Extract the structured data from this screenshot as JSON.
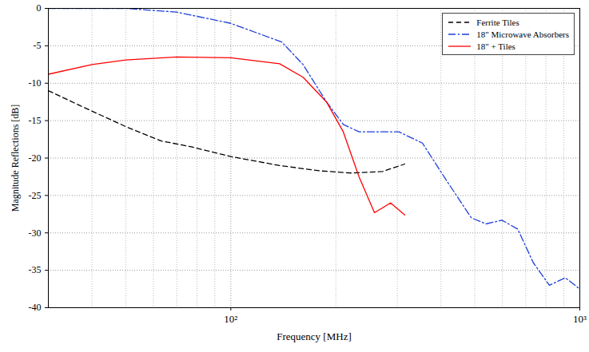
{
  "chart_data": {
    "type": "line",
    "x_label": "Frequency [MHz]",
    "y_label": "Magnitude Reflections [dB]",
    "log": "x",
    "grid": true,
    "legend": "upper right",
    "xlim": [
      30,
      1000
    ],
    "xticks": [
      {
        "value": 100,
        "label": "10²"
      },
      {
        "value": 1000,
        "label": "10³"
      }
    ],
    "ylim": [
      -40,
      0
    ],
    "yticks": [
      0,
      -5,
      -10,
      -15,
      -20,
      -25,
      -30,
      -35,
      -40
    ],
    "series": [
      {
        "name": "Ferrite Tiles",
        "color": "#000000",
        "line_style": "dashed",
        "x": [
          30,
          37,
          50,
          63,
          77,
          100,
          138,
          179,
          221,
          272,
          315
        ],
        "values": [
          -11,
          -13,
          -15.8,
          -17.7,
          -18.5,
          -19.8,
          -21,
          -21.7,
          -22,
          -21.8,
          -20.8
        ]
      },
      {
        "name": "18\" Microwave Absorbers",
        "color": "#1f3fdb",
        "line_style": "dashdot",
        "x": [
          30,
          50,
          70,
          100,
          140,
          161,
          188,
          210,
          233,
          258,
          303,
          354,
          415,
          489,
          539,
          598,
          664,
          736,
          818,
          909,
          1000
        ],
        "values": [
          0,
          0,
          -0.5,
          -2,
          -4.5,
          -7.5,
          -12.5,
          -15.5,
          -16.5,
          -16.5,
          -16.5,
          -18,
          -23,
          -28,
          -28.8,
          -28.3,
          -29.5,
          -34,
          -37,
          -36,
          -37.5
        ]
      },
      {
        "name": "18\" + Tiles",
        "color": "#ff0000",
        "line_style": "solid",
        "x": [
          30,
          40,
          50,
          70,
          100,
          138,
          161,
          188,
          210,
          233,
          258,
          287,
          315
        ],
        "values": [
          -8.8,
          -7.5,
          -6.9,
          -6.5,
          -6.6,
          -7.4,
          -9.2,
          -12.5,
          -16.5,
          -22.5,
          -27.3,
          -26,
          -27.6
        ]
      }
    ]
  }
}
